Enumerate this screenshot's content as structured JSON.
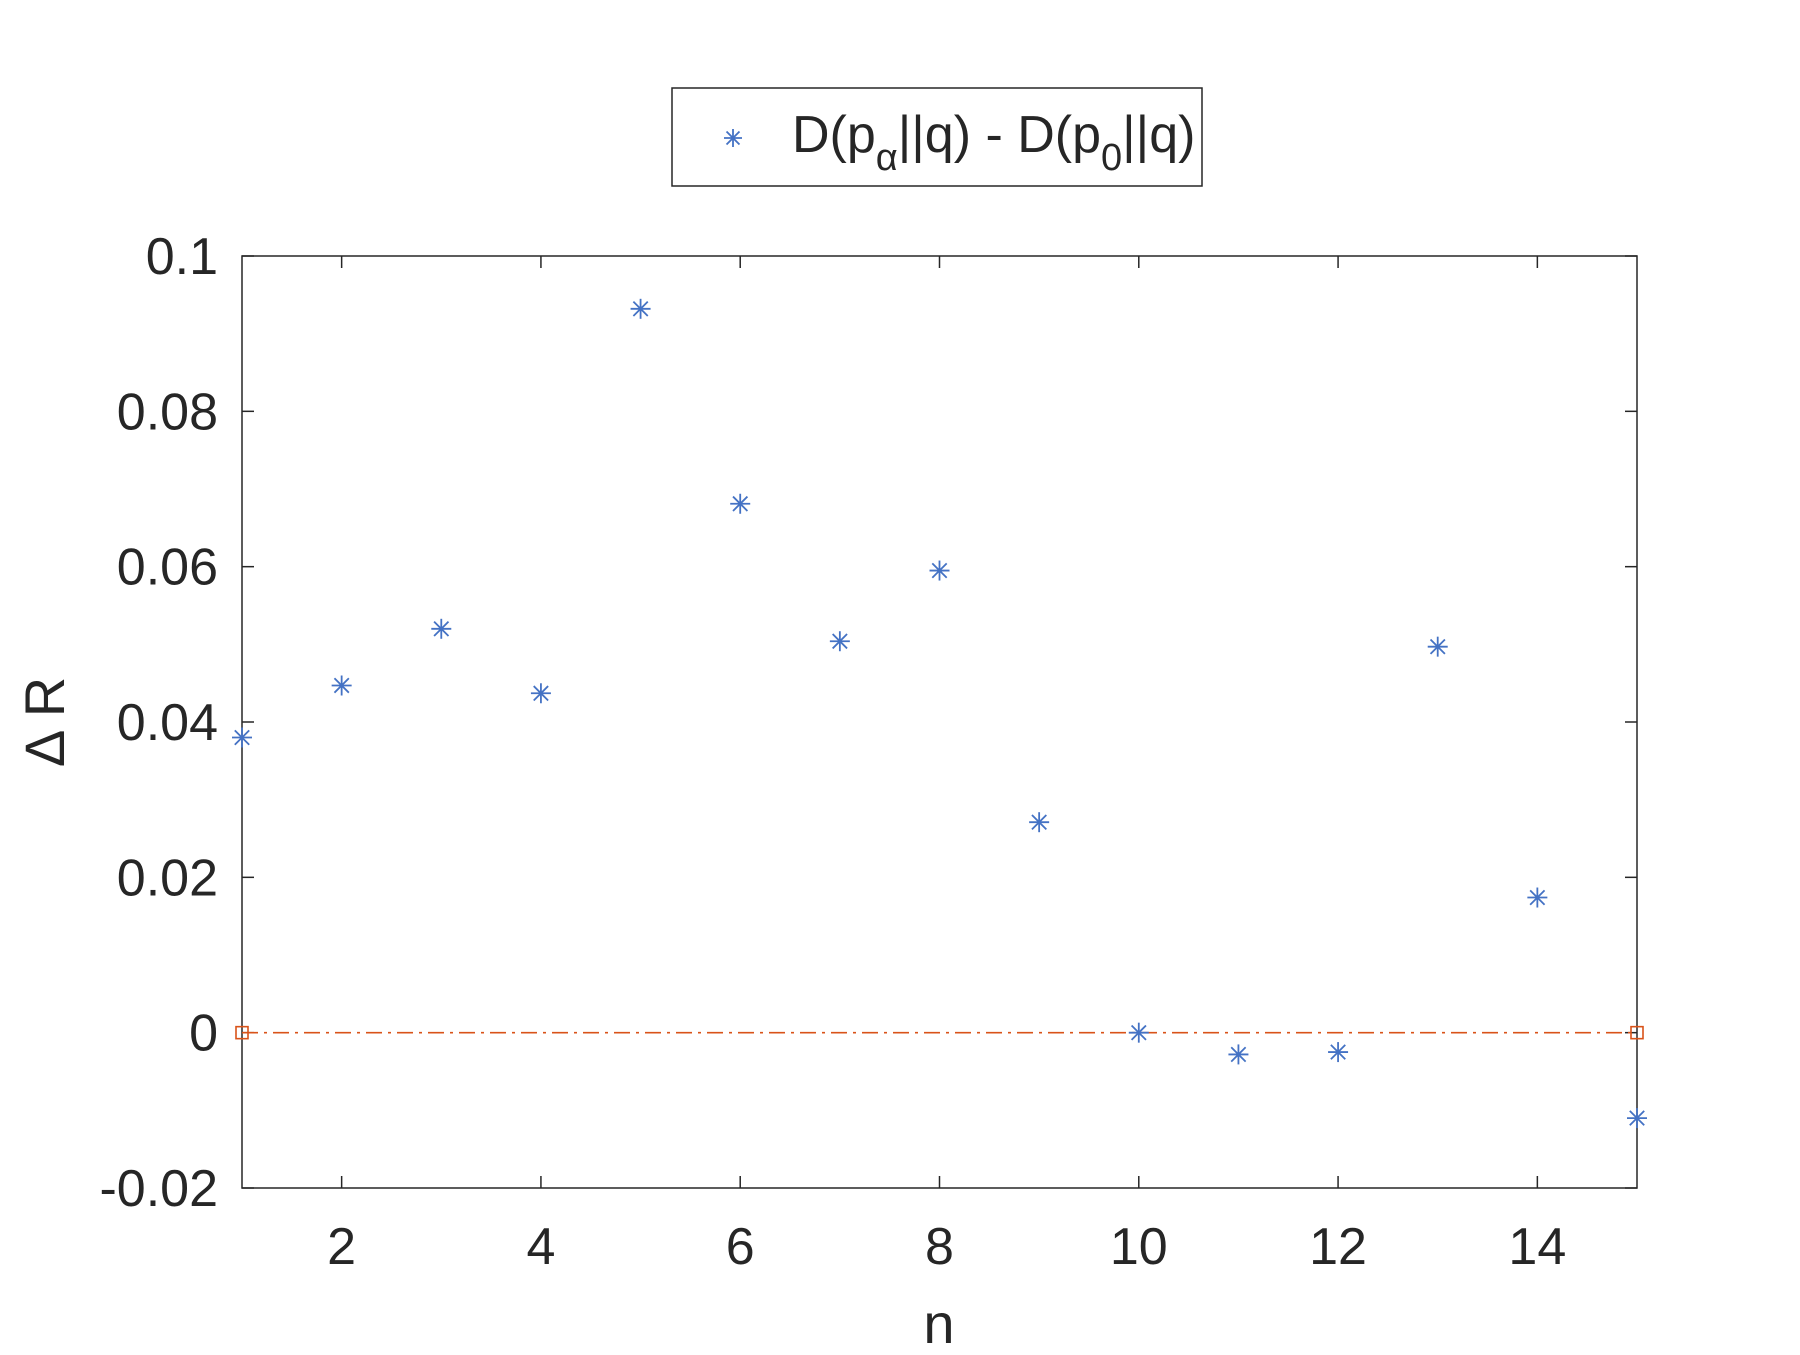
{
  "chart_data": {
    "type": "scatter",
    "title": "",
    "xlabel": "n",
    "ylabel": "Δ R",
    "xlim": [
      1,
      15
    ],
    "ylim": [
      -0.02,
      0.1
    ],
    "x_ticks": [
      2,
      4,
      6,
      8,
      10,
      12,
      14
    ],
    "x_tick_labels": [
      "2",
      "4",
      "6",
      "8",
      "10",
      "12",
      "14"
    ],
    "y_ticks": [
      -0.02,
      0,
      0.02,
      0.04,
      0.06,
      0.08,
      0.1
    ],
    "y_tick_labels": [
      "-0.02",
      "0",
      "0.02",
      "0.04",
      "0.06",
      "0.08",
      "0.1"
    ],
    "grid": false,
    "legend_position": "top-center-outside",
    "legend": {
      "main": "D(p",
      "sub1": "α",
      "mid": "||q) - D(p",
      "sub2": "0",
      "end": "||q)"
    },
    "series": [
      {
        "marker": "asterisk",
        "color": "#4472c4",
        "x": [
          1,
          2,
          3,
          4,
          5,
          6,
          7,
          8,
          9,
          10,
          11,
          12,
          13,
          14,
          15
        ],
        "y": [
          0.038,
          0.0447,
          0.052,
          0.0437,
          0.0932,
          0.0681,
          0.0504,
          0.0595,
          0.0271,
          0.0,
          -0.0028,
          -0.0025,
          0.0497,
          0.0174,
          -0.011
        ]
      }
    ],
    "reference_line": {
      "style": "dash-dot",
      "color": "#d95319",
      "y": 0,
      "x": [
        1,
        15
      ],
      "marker": "square"
    }
  }
}
